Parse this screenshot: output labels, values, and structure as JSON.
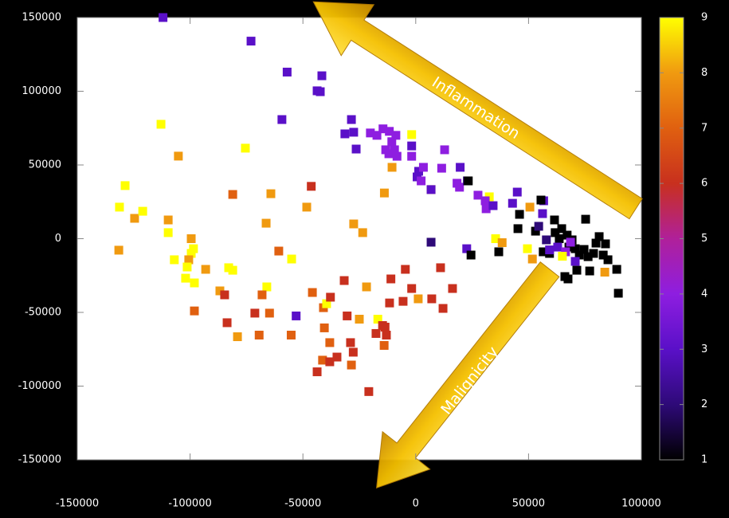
{
  "chart_data": {
    "type": "scatter",
    "x": [
      -112000,
      -73000,
      -57000,
      -41600,
      -43700,
      -42300,
      -59300,
      -28500,
      -112900,
      -105200,
      -75500,
      -128800,
      -131300,
      -124600,
      -121000,
      -109700,
      -109700,
      -131600,
      -107000,
      -99500,
      -98500,
      -99500,
      -100600,
      -101300,
      -102000,
      -98100,
      -93100,
      -98100,
      -86800,
      -84700,
      -82900,
      -81100,
      -81100,
      -83600,
      -79000,
      -64200,
      -66300,
      -60700,
      -55000,
      -66000,
      -68100,
      -71300,
      -69400,
      -64800,
      -55200,
      -53000,
      -48300,
      -46300,
      -45800,
      -40900,
      -39500,
      -37800,
      -40500,
      -43700,
      -41300,
      -38100,
      -38100,
      -34900,
      -31700,
      -27500,
      -23500,
      -30400,
      -28900,
      -27700,
      -28500,
      -21800,
      -20800,
      -25000,
      -16800,
      -17600,
      -14700,
      -13600,
      -13000,
      -14000,
      -11600,
      -11000,
      -5600,
      -4600,
      -1800,
      1100,
      7100,
      -13900,
      -10500,
      -1800,
      11000,
      12100,
      16300,
      6800,
      32600,
      35400,
      38300,
      50600,
      51700,
      49500,
      -31400,
      -27500,
      -26400,
      -20100,
      -17200,
      -14500,
      -11700,
      -10600,
      -8800,
      -13300,
      -11900,
      -9400,
      -8300,
      -1800,
      -1800,
      1300,
      600,
      2400,
      3400,
      6800,
      11500,
      12800,
      19700,
      18300,
      19400,
      22900,
      22600,
      27600,
      30800,
      31200,
      34300,
      42900,
      45000,
      56700,
      6800,
      24500,
      23300,
      36800,
      46000,
      45300,
      55500,
      53100,
      56500,
      59300,
      61500,
      61800,
      63600,
      64700,
      67100,
      67900,
      69300,
      67500,
      66100,
      70700,
      72500,
      75300,
      74600,
      76400,
      77100,
      78800,
      79900,
      81300,
      83100,
      84100,
      85200,
      89100,
      89800,
      71400,
      57900,
      62900,
      66400,
      70700,
      59300,
      65000,
      68600,
      83800,
      56200,
      54500
    ],
    "values": [
      150000,
      134000,
      113000,
      110500,
      100300,
      99700,
      80800,
      80800,
      77600,
      56000,
      61400,
      36000,
      21400,
      13800,
      18600,
      12700,
      4100,
      -7800,
      -14300,
      0,
      -6800,
      -10000,
      -14300,
      -19200,
      -26800,
      -30000,
      -20800,
      -49000,
      -35400,
      -38100,
      -19700,
      -21400,
      30000,
      -57000,
      -66500,
      30500,
      10500,
      -8400,
      -13800,
      -32700,
      -38100,
      -50500,
      -65400,
      -50500,
      -65400,
      -52400,
      21400,
      35500,
      -36500,
      -46800,
      -44100,
      -39700,
      -60500,
      -90300,
      -82400,
      -70500,
      -83500,
      -80300,
      -28400,
      10000,
      4100,
      -52400,
      -70500,
      -77000,
      -85700,
      -32700,
      -103700,
      -54600,
      -54600,
      -64300,
      -58900,
      -60000,
      -65400,
      -72400,
      -43600,
      -27300,
      -42500,
      -20800,
      -33800,
      -40800,
      -40800,
      31000,
      48400,
      70600,
      -19700,
      -47300,
      -33800,
      33300,
      28400,
      0,
      -2700,
      21400,
      -13800,
      -6800,
      71100,
      72200,
      60800,
      71700,
      70100,
      74500,
      72800,
      65800,
      70100,
      60300,
      57600,
      60300,
      55900,
      55900,
      62900,
      45700,
      41900,
      39200,
      48400,
      33300,
      47800,
      60300,
      48400,
      37600,
      34900,
      39200,
      -6800,
      29500,
      25700,
      20300,
      22400,
      24000,
      31600,
      25700,
      -2400,
      -11100,
      39200,
      -8900,
      16500,
      6800,
      26200,
      5100,
      -8900,
      -10000,
      12700,
      4100,
      0,
      6800,
      2400,
      -5700,
      -800,
      -27300,
      -25700,
      -6800,
      -11100,
      13200,
      -7300,
      -12200,
      -21900,
      -10000,
      -3000,
      1400,
      -11100,
      -3500,
      -14300,
      -20800,
      -37000,
      -21400,
      -800,
      -5700,
      -8900,
      -15400,
      -7600,
      -11900,
      -2400,
      -22700,
      17000,
      8400
    ],
    "color_values": [
      3,
      3,
      3,
      3,
      3,
      3,
      3,
      3,
      9,
      8,
      9,
      9,
      9,
      8,
      9,
      8,
      9,
      8,
      9,
      8,
      9,
      9,
      8,
      9,
      9,
      9,
      8,
      7,
      8,
      6,
      9,
      9,
      7,
      6,
      8,
      8,
      8,
      7,
      9,
      9,
      7,
      6,
      7,
      7,
      7,
      3,
      8,
      6,
      7,
      7,
      9,
      6,
      7,
      6,
      7,
      7,
      6,
      6,
      6,
      8,
      8,
      6,
      6,
      6,
      7,
      8,
      6,
      8,
      9,
      6,
      6,
      6,
      6,
      7,
      6,
      6,
      6,
      6,
      6,
      8,
      6,
      8,
      8,
      9,
      6,
      6,
      6,
      8,
      9,
      9,
      8,
      8,
      8,
      9,
      3,
      3,
      3,
      4,
      4,
      4,
      4,
      4,
      4,
      4,
      4,
      4,
      4,
      4,
      3,
      3,
      3,
      4,
      4,
      3,
      4,
      4,
      3,
      4,
      4,
      2,
      3,
      4,
      4,
      4,
      3,
      3,
      3,
      3,
      2,
      1,
      1,
      1,
      1,
      1,
      1,
      1,
      1,
      1,
      1,
      1,
      1,
      1,
      1,
      1,
      1,
      1,
      1,
      1,
      1,
      1,
      1,
      1,
      1,
      1,
      1,
      1,
      1,
      1,
      1,
      1,
      1,
      1,
      2,
      3,
      4,
      3,
      3,
      9,
      4,
      8,
      3,
      2
    ],
    "xlim": [
      -150000,
      100000
    ],
    "xticks": [
      -150000,
      -100000,
      -50000,
      0,
      50000,
      100000
    ],
    "ylim": [
      -150000,
      150000
    ],
    "yticks": [
      -150000,
      -100000,
      -50000,
      0,
      50000,
      100000,
      150000
    ],
    "clim": [
      1,
      9
    ],
    "cticks": [
      1,
      2,
      3,
      4,
      5,
      6,
      7,
      8,
      9
    ],
    "colormap": [
      "#000000",
      "#2e0a78",
      "#5a10c8",
      "#8e1ee0",
      "#b0209a",
      "#c8301e",
      "#e06010",
      "#f09a10",
      "#ffff00"
    ],
    "annotations": [
      "Inflammation",
      "Malignicity"
    ]
  }
}
